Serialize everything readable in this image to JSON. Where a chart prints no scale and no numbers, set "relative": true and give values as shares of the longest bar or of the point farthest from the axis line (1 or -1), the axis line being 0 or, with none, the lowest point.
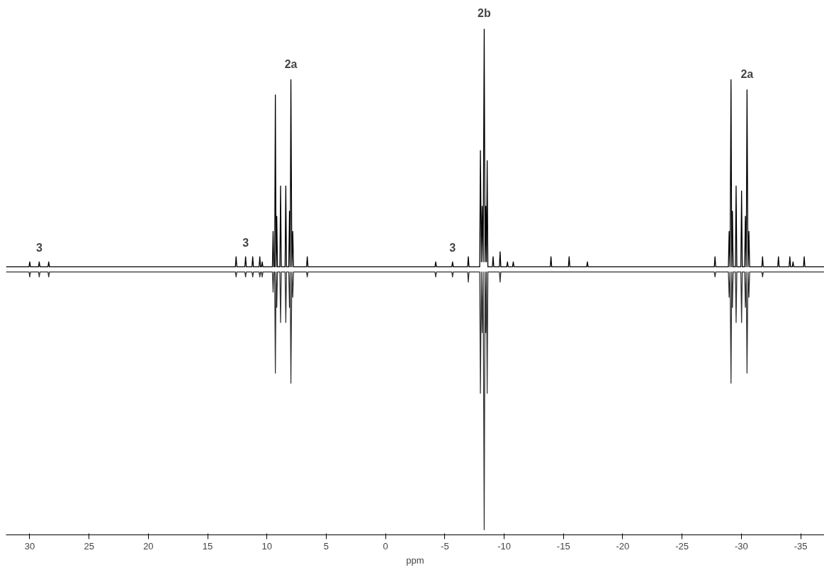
{
  "chart_data": {
    "type": "line",
    "relative": true,
    "xlabel": "ppm",
    "xlim": [
      32,
      -37
    ],
    "xticks": [
      30,
      25,
      20,
      15,
      10,
      5,
      0,
      -5,
      -10,
      -15,
      -20,
      -25,
      -30,
      -35
    ],
    "grid": false,
    "annotations": [
      {
        "text": "3",
        "x": 29.2,
        "y": 0.54
      },
      {
        "text": "3",
        "x": 11.8,
        "y": 0.55
      },
      {
        "text": "2a",
        "x": 7.98,
        "y": 0.9
      },
      {
        "text": "2b",
        "x": -8.32,
        "y": 1.0
      },
      {
        "text": "3",
        "x": -5.65,
        "y": 0.54
      },
      {
        "text": "2a",
        "x": -30.48,
        "y": 0.88
      }
    ],
    "series": [
      {
        "color": "#000000",
        "x": [
          32,
          30.06,
          30.0,
          29.94,
          29.26,
          29.2,
          29.14,
          28.46,
          28.4,
          28.34,
          12.66,
          12.6,
          12.54,
          11.86,
          11.8,
          11.74,
          11.26,
          11.2,
          11.14,
          10.66,
          10.6,
          10.54,
          10.46,
          10.4,
          10.34,
          9.54,
          9.48,
          9.42,
          9.35,
          9.29,
          9.23,
          9.17,
          9.11,
          8.91,
          8.85,
          8.79,
          8.47,
          8.41,
          8.35,
          8.16,
          8.1,
          8.04,
          7.98,
          7.9,
          7.82,
          7.76,
          6.66,
          6.6,
          6.54,
          -4.17,
          -4.23,
          -4.29,
          -5.59,
          -5.65,
          -5.71,
          -6.92,
          -6.98,
          -7.04,
          -7.94,
          -8.0,
          -8.08,
          -8.15,
          -8.23,
          -8.32,
          -8.39,
          -8.45,
          -8.51,
          -8.57,
          -8.63,
          -9.01,
          -9.07,
          -9.13,
          -9.6,
          -9.66,
          -9.72,
          -10.22,
          -10.28,
          -10.34,
          -10.71,
          -10.77,
          -10.83,
          -13.89,
          -13.95,
          -14.01,
          -15.42,
          -15.48,
          -15.54,
          -16.96,
          -17.02,
          -17.08,
          -27.72,
          -27.78,
          -27.84,
          -28.91,
          -28.97,
          -29.05,
          -29.13,
          -29.19,
          -29.25,
          -29.31,
          -29.5,
          -29.56,
          -29.62,
          -29.96,
          -30.02,
          -30.08,
          -30.28,
          -30.34,
          -30.41,
          -30.48,
          -30.56,
          -30.64,
          -30.7,
          -31.73,
          -31.79,
          -31.85,
          -33.07,
          -33.13,
          -33.19,
          -34.03,
          -34.09,
          -34.15,
          -34.3,
          -34.36,
          -34.42,
          -35.24,
          -35.3,
          -35.36,
          -37
        ],
        "values": [
          0.53,
          0.53,
          0.54,
          0.53,
          0.53,
          0.54,
          0.53,
          0.53,
          0.54,
          0.53,
          0.53,
          0.55,
          0.53,
          0.53,
          0.55,
          0.53,
          0.53,
          0.55,
          0.53,
          0.53,
          0.55,
          0.53,
          0.53,
          0.54,
          0.53,
          0.53,
          0.6,
          0.53,
          0.53,
          0.87,
          0.53,
          0.63,
          0.53,
          0.53,
          0.69,
          0.53,
          0.53,
          0.69,
          0.53,
          0.53,
          0.64,
          0.53,
          0.9,
          0.53,
          0.6,
          0.53,
          0.53,
          0.55,
          0.53,
          0.53,
          0.54,
          0.53,
          0.53,
          0.54,
          0.53,
          0.53,
          0.55,
          0.53,
          0.53,
          0.76,
          0.54,
          0.65,
          0.54,
          1.0,
          0.54,
          0.65,
          0.54,
          0.74,
          0.53,
          0.53,
          0.55,
          0.53,
          0.53,
          0.56,
          0.53,
          0.53,
          0.54,
          0.53,
          0.53,
          0.54,
          0.53,
          0.53,
          0.55,
          0.53,
          0.53,
          0.55,
          0.53,
          0.53,
          0.54,
          0.53,
          0.53,
          0.55,
          0.53,
          0.53,
          0.6,
          0.53,
          0.9,
          0.53,
          0.64,
          0.53,
          0.53,
          0.69,
          0.53,
          0.53,
          0.68,
          0.53,
          0.53,
          0.63,
          0.53,
          0.88,
          0.53,
          0.6,
          0.53,
          0.53,
          0.55,
          0.53,
          0.53,
          0.55,
          0.53,
          0.53,
          0.55,
          0.53,
          0.53,
          0.54,
          0.53,
          0.53,
          0.55,
          0.53,
          0.53
        ]
      },
      {
        "color": "#333333",
        "x": [
          32,
          30.06,
          30.0,
          29.94,
          29.26,
          29.2,
          29.14,
          28.46,
          28.4,
          28.34,
          12.66,
          12.6,
          12.54,
          11.86,
          11.8,
          11.74,
          11.26,
          11.2,
          11.14,
          10.66,
          10.6,
          10.54,
          10.46,
          10.4,
          10.34,
          9.54,
          9.48,
          9.42,
          9.35,
          9.29,
          9.23,
          9.17,
          9.11,
          8.91,
          8.85,
          8.79,
          8.47,
          8.41,
          8.35,
          8.16,
          8.1,
          8.04,
          7.98,
          7.9,
          7.82,
          7.76,
          6.66,
          6.6,
          6.54,
          -4.17,
          -4.23,
          -4.29,
          -5.59,
          -5.65,
          -5.71,
          -6.92,
          -6.98,
          -7.04,
          -7.94,
          -8.0,
          -8.08,
          -8.15,
          -8.23,
          -8.32,
          -8.39,
          -8.45,
          -8.51,
          -8.57,
          -8.63,
          -9.6,
          -9.66,
          -9.72,
          -10.71,
          -10.77,
          -10.83,
          -27.72,
          -27.78,
          -27.84,
          -28.91,
          -28.97,
          -29.05,
          -29.13,
          -29.19,
          -29.25,
          -29.31,
          -29.5,
          -29.56,
          -29.62,
          -29.96,
          -30.02,
          -30.08,
          -30.28,
          -30.34,
          -30.41,
          -30.48,
          -30.56,
          -30.64,
          -30.7,
          -31.73,
          -31.79,
          -31.85,
          -37
        ],
        "values": [
          0.52,
          0.52,
          0.51,
          0.52,
          0.52,
          0.51,
          0.52,
          0.52,
          0.51,
          0.52,
          0.52,
          0.51,
          0.52,
          0.52,
          0.51,
          0.52,
          0.52,
          0.51,
          0.52,
          0.52,
          0.51,
          0.52,
          0.52,
          0.51,
          0.52,
          0.52,
          0.48,
          0.52,
          0.52,
          0.32,
          0.52,
          0.45,
          0.52,
          0.52,
          0.42,
          0.52,
          0.52,
          0.42,
          0.52,
          0.52,
          0.45,
          0.52,
          0.3,
          0.52,
          0.47,
          0.52,
          0.52,
          0.51,
          0.52,
          0.52,
          0.51,
          0.52,
          0.52,
          0.51,
          0.52,
          0.52,
          0.5,
          0.52,
          0.52,
          0.28,
          0.52,
          0.4,
          0.52,
          0.01,
          0.52,
          0.4,
          0.52,
          0.28,
          0.52,
          0.52,
          0.5,
          0.52,
          0.52,
          0.52,
          0.52,
          0.52,
          0.51,
          0.52,
          0.52,
          0.47,
          0.52,
          0.3,
          0.52,
          0.45,
          0.52,
          0.52,
          0.42,
          0.52,
          0.52,
          0.42,
          0.52,
          0.52,
          0.45,
          0.52,
          0.32,
          0.52,
          0.47,
          0.52,
          0.52,
          0.51,
          0.52,
          0.52
        ]
      }
    ]
  }
}
